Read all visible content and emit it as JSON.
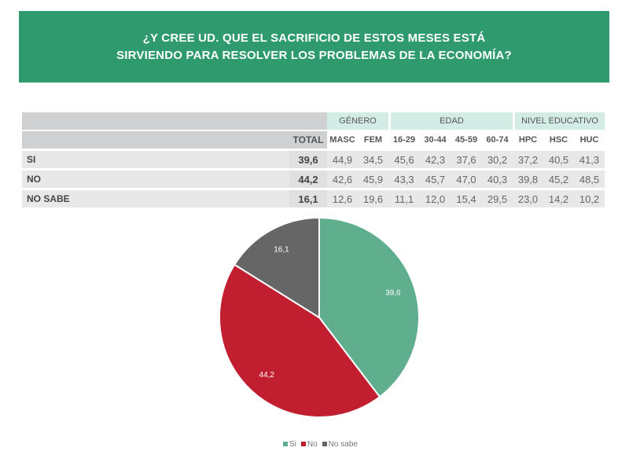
{
  "title_lines": [
    "¿Y CREE UD. QUE EL SACRIFICIO DE ESTOS MESES ESTÁ",
    "SIRVIENDO PARA RESOLVER LOS PROBLEMAS DE LA ECONOMÍA?"
  ],
  "table": {
    "groups": [
      "GÉNERO",
      "EDAD",
      "NIVEL EDUCATIVO"
    ],
    "columns": [
      "TOTAL",
      "MASC",
      "FEM",
      "16-29",
      "30-44",
      "45-59",
      "60-74",
      "HPC",
      "HSC",
      "HUC"
    ],
    "rows": [
      {
        "label": "SI",
        "values": [
          "39,6",
          "44,9",
          "34,5",
          "45,6",
          "42,3",
          "37,6",
          "30,2",
          "37,2",
          "40,5",
          "41,3"
        ]
      },
      {
        "label": "NO",
        "values": [
          "44,2",
          "42,6",
          "45,9",
          "43,3",
          "45,7",
          "47,0",
          "40,3",
          "39,8",
          "45,2",
          "48,5"
        ]
      },
      {
        "label": "NO SABE",
        "values": [
          "16,1",
          "12,6",
          "19,6",
          "11,1",
          "12,0",
          "15,4",
          "29,5",
          "23,0",
          "14,2",
          "10,2"
        ]
      }
    ]
  },
  "chart_data": {
    "type": "pie",
    "categories": [
      "Si",
      "No",
      "No sabe"
    ],
    "values": [
      39.6,
      44.2,
      16.1
    ],
    "labels": [
      "39,6",
      "44,2",
      "16,1"
    ],
    "colors": [
      "#5fae8e",
      "#c11f2f",
      "#666666"
    ],
    "legend_placement": "bottom"
  },
  "colors": {
    "header": "#2f9a6e",
    "group_header": "#d3ece5"
  }
}
